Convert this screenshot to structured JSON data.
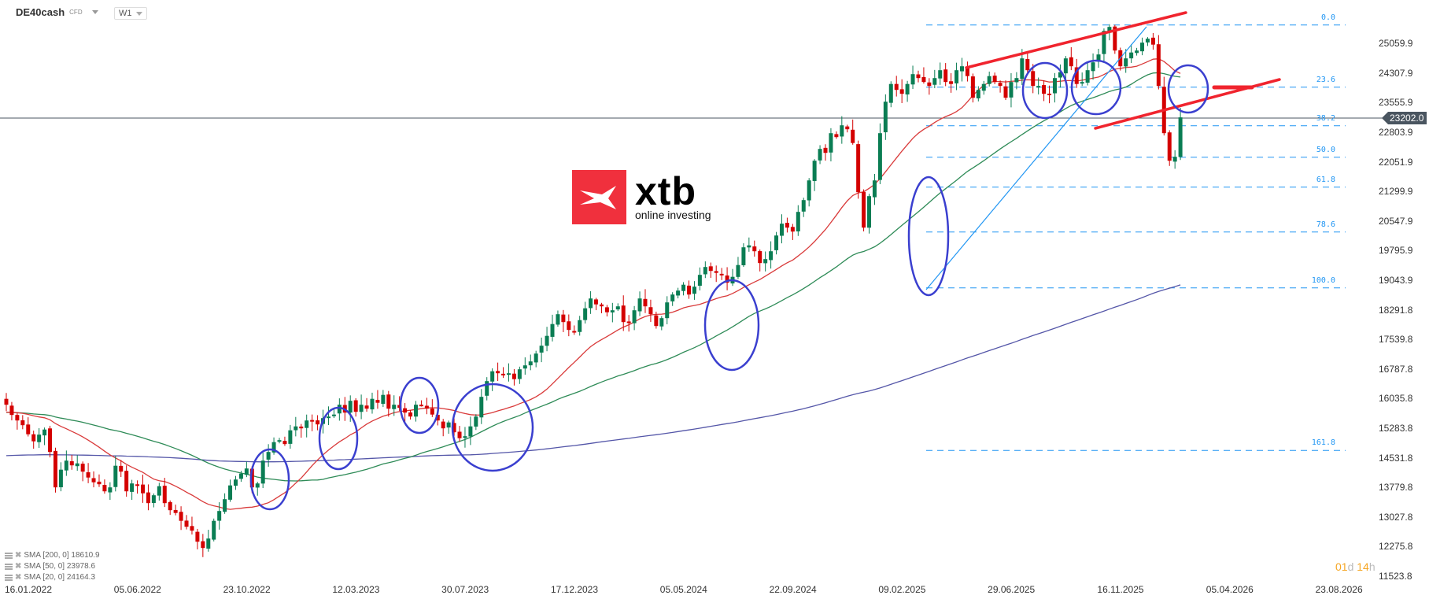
{
  "header": {
    "symbol": "DE40cash",
    "symbol_type": "CFD",
    "timeframe": "W1"
  },
  "logo": {
    "name": "xtb",
    "tagline": "online investing"
  },
  "current_price": "23202.0",
  "timer": {
    "days": "01",
    "d": "d",
    "hours": "14",
    "h": "h"
  },
  "legend": [
    {
      "label": "SMA [200, 0] 18610.9"
    },
    {
      "label": "SMA [50, 0] 23978.6"
    },
    {
      "label": "SMA [20, 0] 24164.3"
    }
  ],
  "colors": {
    "bull": "#0a7d53",
    "bear": "#d40000",
    "sma20": "#d93a3a",
    "sma50": "#2e8b57",
    "sma200": "#5456a8",
    "fib": "#2196f3",
    "annotation_circle": "#3a3fcf",
    "trendline": "#f0242e",
    "price_line": "#4a5560"
  },
  "chart_data": {
    "type": "candlestick",
    "title": "DE40cash CFD W1",
    "xlabel": "",
    "ylabel": "",
    "y_ticks": [
      "25059.9",
      "24307.9",
      "23555.9",
      "22803.9",
      "22051.9",
      "21299.9",
      "20547.9",
      "19795.9",
      "19043.9",
      "18291.8",
      "17539.8",
      "16787.8",
      "16035.8",
      "15283.8",
      "14531.8",
      "13779.8",
      "13027.8",
      "12275.8",
      "11523.8"
    ],
    "x_ticks": [
      "16.01.2022",
      "05.06.2022",
      "23.10.2022",
      "12.03.2023",
      "30.07.2023",
      "17.12.2023",
      "05.05.2024",
      "22.09.2024",
      "09.02.2025",
      "29.06.2025",
      "16.11.2025",
      "05.04.2026",
      "23.08.2026"
    ],
    "ylim": [
      11523.8,
      25812
    ],
    "last_price": 23202.0,
    "fibonacci": [
      {
        "level": "0.0",
        "price": 25550
      },
      {
        "level": "23.6",
        "price": 23970
      },
      {
        "level": "38.2",
        "price": 22990
      },
      {
        "level": "50.0",
        "price": 22190
      },
      {
        "level": "61.8",
        "price": 21430
      },
      {
        "level": "78.6",
        "price": 20290
      },
      {
        "level": "100.0",
        "price": 18870
      },
      {
        "level": "161.8",
        "price": 14740
      }
    ],
    "series": [
      {
        "name": "SMA [200, 0]",
        "last": 18610.9
      },
      {
        "name": "SMA [50, 0]",
        "last": 23978.6
      },
      {
        "name": "SMA [20, 0]",
        "last": 24164.3
      }
    ],
    "closes": [
      15900,
      15640,
      15500,
      15380,
      15150,
      14970,
      15140,
      15270,
      14700,
      13800,
      14250,
      14480,
      14360,
      14410,
      14200,
      14050,
      13930,
      13880,
      13700,
      13800,
      14350,
      14200,
      13700,
      13900,
      13850,
      13650,
      13400,
      13600,
      13830,
      13400,
      13220,
      13150,
      12950,
      12800,
      12700,
      12420,
      12260,
      12500,
      12950,
      13200,
      13500,
      13850,
      14000,
      14150,
      14280,
      13800,
      13900,
      14480,
      14700,
      14950,
      15000,
      14900,
      15250,
      15350,
      15300,
      15500,
      15480,
      15400,
      15560,
      15600,
      15650,
      15900,
      15700,
      16000,
      15720,
      15900,
      15800,
      16050,
      15950,
      16150,
      15800,
      15900,
      15820,
      15700,
      15600,
      15900,
      15900,
      15800,
      15650,
      15500,
      15300,
      15450,
      15200,
      15050,
      15100,
      15350,
      15600,
      16100,
      16500,
      16750,
      16700,
      16650,
      16700,
      16550,
      16800,
      16900,
      17000,
      17200,
      17400,
      17650,
      17950,
      18200,
      18000,
      17800,
      17750,
      18050,
      18350,
      18600,
      18450,
      18400,
      18250,
      18300,
      18400,
      18000,
      18000,
      18300,
      18600,
      18400,
      18200,
      17900,
      18100,
      18500,
      18700,
      18800,
      18950,
      18700,
      18900,
      19200,
      19400,
      19300,
      19250,
      19200,
      19000,
      19150,
      19450,
      19900,
      19950,
      19800,
      19500,
      19600,
      19800,
      20200,
      20500,
      20400,
      20300,
      20800,
      21100,
      21600,
      22100,
      22400,
      22300,
      22800,
      22700,
      23000,
      22900,
      22550,
      21300,
      20400,
      21200,
      21600,
      22800,
      23600,
      24050,
      23900,
      23800,
      24050,
      24300,
      24200,
      24100,
      24000,
      24200,
      24400,
      24100,
      24050,
      24400,
      24500,
      24250,
      23700,
      23900,
      24050,
      24250,
      24100,
      24000,
      23700,
      24100,
      24200,
      24700,
      24400,
      24000,
      24000,
      23800,
      23800,
      24200,
      24350,
      24700,
      24500,
      24050,
      24100,
      24400,
      24600,
      24800,
      25400,
      25500,
      24900,
      24500,
      24700,
      24850,
      24900,
      25100,
      25200,
      25050,
      24000,
      22800,
      22100,
      22200,
      23202
    ]
  }
}
